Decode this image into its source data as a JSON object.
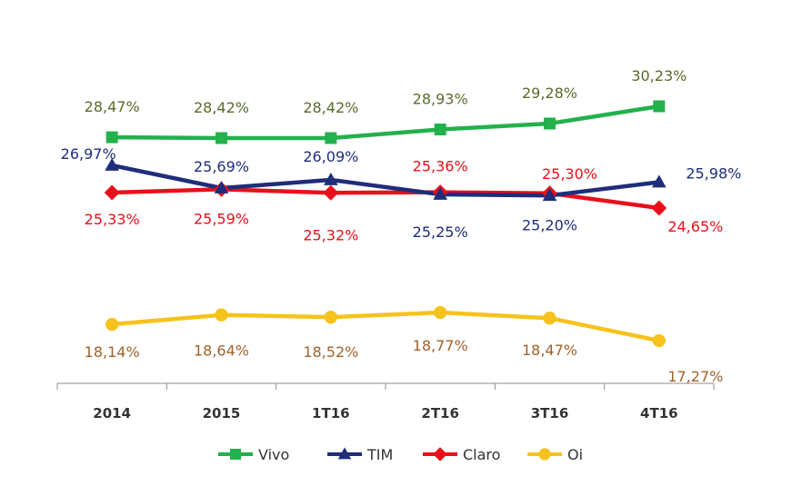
{
  "chart_data": {
    "type": "line",
    "categories": [
      "2014",
      "2015",
      "1T16",
      "2T16",
      "3T16",
      "4T16"
    ],
    "ylim": [
      16,
      31
    ],
    "grid": false,
    "legend_position": "bottom",
    "series": [
      {
        "name": "Vivo",
        "color": "#22b14c",
        "label_color": "#5a6b2a",
        "marker": "square",
        "values": [
          28.47,
          28.42,
          28.42,
          28.93,
          29.28,
          30.23
        ],
        "labels": [
          "28,47%",
          "28,42%",
          "28,42%",
          "28,93%",
          "29,28%",
          "30,23%"
        ]
      },
      {
        "name": "TIM",
        "color": "#1f2d7a",
        "label_color": "#1f2d7a",
        "marker": "triangle",
        "values": [
          26.97,
          25.69,
          26.09,
          25.25,
          25.2,
          25.98
        ],
        "labels": [
          "26,97%",
          "25,69%",
          "26,09%",
          "25,25%",
          "25,20%",
          "25,98%"
        ]
      },
      {
        "name": "Claro",
        "color": "#e8101a",
        "label_color": "#e8101a",
        "marker": "diamond",
        "values": [
          25.33,
          25.59,
          25.32,
          25.36,
          25.3,
          24.65
        ],
        "labels": [
          "25,33%",
          "25,59%",
          "25,32%",
          "25,36%",
          "25,30%",
          "24,65%"
        ]
      },
      {
        "name": "Oi",
        "color": "#f6c21c",
        "label_color": "#a0622a",
        "marker": "circle",
        "values": [
          18.14,
          18.64,
          18.52,
          18.77,
          18.47,
          17.27
        ],
        "labels": [
          "18,14%",
          "18,64%",
          "18,52%",
          "18,77%",
          "18,47%",
          "17,27%"
        ]
      }
    ]
  }
}
